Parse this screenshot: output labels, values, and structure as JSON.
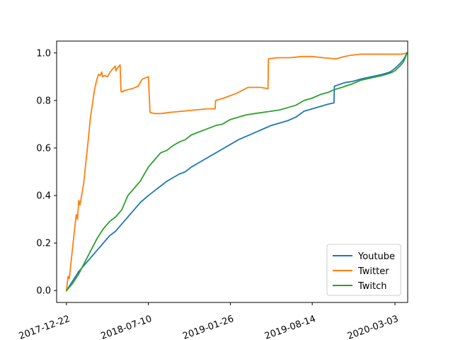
{
  "chart_data": {
    "type": "line",
    "title": "",
    "xlabel": "",
    "ylabel": "",
    "x_axis_type": "date",
    "xlim": [
      "2017-11-28",
      "2020-04-03"
    ],
    "ylim": [
      -0.05,
      1.05
    ],
    "x_ticks": [
      "2017-12-22",
      "2018-07-10",
      "2019-01-26",
      "2019-08-14",
      "2020-03-03"
    ],
    "y_ticks": [
      0.0,
      0.2,
      0.4,
      0.6,
      0.8,
      1.0
    ],
    "y_tick_labels": [
      "0.0",
      "0.2",
      "0.4",
      "0.6",
      "0.8",
      "1.0"
    ],
    "x_tick_rotation_deg": 20,
    "grid": false,
    "legend_position": "lower-right",
    "series": [
      {
        "name": "Youtube",
        "color": "#1f77b4",
        "points": [
          [
            "2017-12-22",
            0.0
          ],
          [
            "2018-01-06",
            0.04
          ],
          [
            "2018-01-21",
            0.08
          ],
          [
            "2018-02-05",
            0.11
          ],
          [
            "2018-02-20",
            0.14
          ],
          [
            "2018-03-07",
            0.17
          ],
          [
            "2018-03-22",
            0.2
          ],
          [
            "2018-04-06",
            0.23
          ],
          [
            "2018-04-21",
            0.25
          ],
          [
            "2018-05-06",
            0.28
          ],
          [
            "2018-05-21",
            0.31
          ],
          [
            "2018-06-05",
            0.34
          ],
          [
            "2018-06-20",
            0.37
          ],
          [
            "2018-07-10",
            0.4
          ],
          [
            "2018-07-25",
            0.42
          ],
          [
            "2018-08-09",
            0.44
          ],
          [
            "2018-08-24",
            0.46
          ],
          [
            "2018-09-08",
            0.475
          ],
          [
            "2018-09-23",
            0.49
          ],
          [
            "2018-10-08",
            0.5
          ],
          [
            "2018-10-23",
            0.52
          ],
          [
            "2018-11-07",
            0.535
          ],
          [
            "2018-11-22",
            0.55
          ],
          [
            "2018-12-07",
            0.565
          ],
          [
            "2018-12-22",
            0.58
          ],
          [
            "2019-01-06",
            0.595
          ],
          [
            "2019-01-26",
            0.615
          ],
          [
            "2019-02-15",
            0.635
          ],
          [
            "2019-03-07",
            0.65
          ],
          [
            "2019-03-27",
            0.665
          ],
          [
            "2019-04-16",
            0.68
          ],
          [
            "2019-05-06",
            0.695
          ],
          [
            "2019-05-26",
            0.705
          ],
          [
            "2019-06-15",
            0.715
          ],
          [
            "2019-07-05",
            0.73
          ],
          [
            "2019-07-25",
            0.755
          ],
          [
            "2019-08-14",
            0.765
          ],
          [
            "2019-09-03",
            0.775
          ],
          [
            "2019-09-23",
            0.785
          ],
          [
            "2019-10-06",
            0.79
          ],
          [
            "2019-10-07",
            0.86
          ],
          [
            "2019-11-01",
            0.875
          ],
          [
            "2019-11-20",
            0.88
          ],
          [
            "2019-12-10",
            0.89
          ],
          [
            "2020-01-05",
            0.9
          ],
          [
            "2020-02-01",
            0.91
          ],
          [
            "2020-02-20",
            0.92
          ],
          [
            "2020-03-03",
            0.935
          ],
          [
            "2020-03-15",
            0.955
          ],
          [
            "2020-03-23",
            0.97
          ],
          [
            "2020-03-28",
            0.985
          ],
          [
            "2020-04-01",
            1.0
          ]
        ]
      },
      {
        "name": "Twitter",
        "color": "#ff7f0e",
        "points": [
          [
            "2017-12-22",
            0.0
          ],
          [
            "2017-12-26",
            0.06
          ],
          [
            "2017-12-29",
            0.05
          ],
          [
            "2018-01-01",
            0.1
          ],
          [
            "2018-01-06",
            0.18
          ],
          [
            "2018-01-11",
            0.26
          ],
          [
            "2018-01-15",
            0.32
          ],
          [
            "2018-01-18",
            0.3
          ],
          [
            "2018-01-21",
            0.38
          ],
          [
            "2018-01-24",
            0.36
          ],
          [
            "2018-01-28",
            0.4
          ],
          [
            "2018-02-02",
            0.45
          ],
          [
            "2018-02-08",
            0.55
          ],
          [
            "2018-02-13",
            0.63
          ],
          [
            "2018-02-18",
            0.72
          ],
          [
            "2018-02-23",
            0.78
          ],
          [
            "2018-02-28",
            0.84
          ],
          [
            "2018-03-05",
            0.88
          ],
          [
            "2018-03-10",
            0.91
          ],
          [
            "2018-03-15",
            0.905
          ],
          [
            "2018-03-18",
            0.92
          ],
          [
            "2018-03-20",
            0.9
          ],
          [
            "2018-03-25",
            0.905
          ],
          [
            "2018-04-01",
            0.9
          ],
          [
            "2018-04-08",
            0.92
          ],
          [
            "2018-04-15",
            0.935
          ],
          [
            "2018-04-20",
            0.945
          ],
          [
            "2018-04-22",
            0.925
          ],
          [
            "2018-04-27",
            0.94
          ],
          [
            "2018-05-02",
            0.95
          ],
          [
            "2018-05-04",
            0.84
          ],
          [
            "2018-05-07",
            0.835
          ],
          [
            "2018-05-10",
            0.84
          ],
          [
            "2018-05-20",
            0.845
          ],
          [
            "2018-06-01",
            0.85
          ],
          [
            "2018-06-15",
            0.86
          ],
          [
            "2018-06-25",
            0.89
          ],
          [
            "2018-07-10",
            0.9
          ],
          [
            "2018-07-14",
            0.75
          ],
          [
            "2018-07-25",
            0.745
          ],
          [
            "2018-08-10",
            0.745
          ],
          [
            "2018-09-01",
            0.75
          ],
          [
            "2018-10-01",
            0.755
          ],
          [
            "2018-11-01",
            0.76
          ],
          [
            "2018-12-01",
            0.765
          ],
          [
            "2018-12-20",
            0.765
          ],
          [
            "2018-12-21",
            0.8
          ],
          [
            "2019-01-10",
            0.81
          ],
          [
            "2019-02-10",
            0.83
          ],
          [
            "2019-03-10",
            0.855
          ],
          [
            "2019-04-10",
            0.855
          ],
          [
            "2019-04-28",
            0.85
          ],
          [
            "2019-04-29",
            0.975
          ],
          [
            "2019-05-20",
            0.98
          ],
          [
            "2019-06-20",
            0.98
          ],
          [
            "2019-07-20",
            0.985
          ],
          [
            "2019-08-14",
            0.985
          ],
          [
            "2019-09-10",
            0.98
          ],
          [
            "2019-10-10",
            0.975
          ],
          [
            "2019-11-01",
            0.985
          ],
          [
            "2019-11-15",
            0.99
          ],
          [
            "2019-12-10",
            0.995
          ],
          [
            "2020-01-05",
            0.995
          ],
          [
            "2020-02-01",
            0.995
          ],
          [
            "2020-03-03",
            0.995
          ],
          [
            "2020-03-20",
            0.995
          ],
          [
            "2020-04-01",
            1.0
          ]
        ]
      },
      {
        "name": "Twitch",
        "color": "#2ca02c",
        "points": [
          [
            "2017-12-22",
            0.0
          ],
          [
            "2018-01-06",
            0.03
          ],
          [
            "2018-01-21",
            0.07
          ],
          [
            "2018-02-05",
            0.12
          ],
          [
            "2018-02-20",
            0.17
          ],
          [
            "2018-03-07",
            0.22
          ],
          [
            "2018-03-22",
            0.26
          ],
          [
            "2018-04-06",
            0.29
          ],
          [
            "2018-04-21",
            0.31
          ],
          [
            "2018-05-06",
            0.34
          ],
          [
            "2018-05-21",
            0.4
          ],
          [
            "2018-06-05",
            0.43
          ],
          [
            "2018-06-20",
            0.46
          ],
          [
            "2018-07-10",
            0.52
          ],
          [
            "2018-07-25",
            0.55
          ],
          [
            "2018-08-09",
            0.58
          ],
          [
            "2018-08-24",
            0.59
          ],
          [
            "2018-09-08",
            0.61
          ],
          [
            "2018-09-23",
            0.625
          ],
          [
            "2018-10-08",
            0.635
          ],
          [
            "2018-10-23",
            0.655
          ],
          [
            "2018-11-07",
            0.665
          ],
          [
            "2018-11-22",
            0.675
          ],
          [
            "2018-12-07",
            0.685
          ],
          [
            "2018-12-22",
            0.695
          ],
          [
            "2019-01-06",
            0.7
          ],
          [
            "2019-01-26",
            0.72
          ],
          [
            "2019-02-15",
            0.73
          ],
          [
            "2019-03-07",
            0.74
          ],
          [
            "2019-03-27",
            0.745
          ],
          [
            "2019-04-16",
            0.75
          ],
          [
            "2019-05-06",
            0.755
          ],
          [
            "2019-05-26",
            0.76
          ],
          [
            "2019-06-15",
            0.77
          ],
          [
            "2019-07-05",
            0.78
          ],
          [
            "2019-07-25",
            0.8
          ],
          [
            "2019-08-14",
            0.81
          ],
          [
            "2019-09-03",
            0.825
          ],
          [
            "2019-09-23",
            0.835
          ],
          [
            "2019-10-06",
            0.845
          ],
          [
            "2019-10-25",
            0.855
          ],
          [
            "2019-11-20",
            0.87
          ],
          [
            "2019-12-10",
            0.885
          ],
          [
            "2020-01-05",
            0.895
          ],
          [
            "2020-02-01",
            0.905
          ],
          [
            "2020-02-20",
            0.915
          ],
          [
            "2020-03-03",
            0.925
          ],
          [
            "2020-03-15",
            0.945
          ],
          [
            "2020-03-23",
            0.96
          ],
          [
            "2020-03-28",
            0.98
          ],
          [
            "2020-04-01",
            1.0
          ]
        ]
      }
    ]
  }
}
